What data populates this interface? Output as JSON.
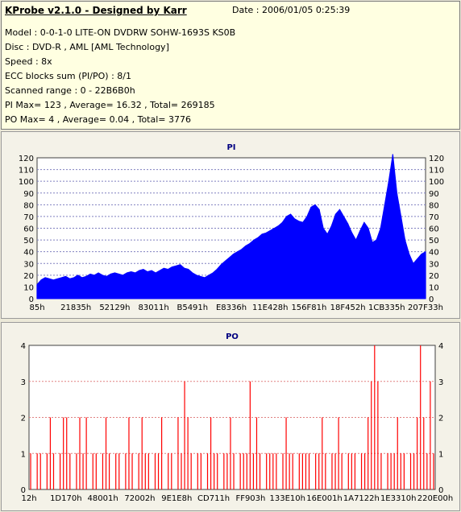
{
  "info": {
    "title": "KProbe v2.1.0 - Designed by Karr",
    "date": "Date : 2006/01/05 0:25:39",
    "lines": [
      "Model : 0-0-1-0 LITE-ON DVDRW SOHW-1693S KS0B",
      "Disc : DVD-R , AML [AML Technology]",
      "Speed : 8x",
      "ECC blocks sum (PI/PO) : 8/1",
      "Scanned range : 0 - 22B6B0h",
      "PI Max= 123 , Average= 16.32 , Total= 269185",
      "PO Max= 4 , Average= 0.04 , Total= 3776"
    ]
  },
  "colors": {
    "pi": "#0000ff",
    "po": "#ff0000",
    "plot_bg": "#ffffff",
    "grid_pi": "#8080c0",
    "grid_po": "#e08080"
  },
  "chart_data": [
    {
      "type": "area",
      "title": "PI",
      "xlabel": "",
      "ylabel": "",
      "ylim": [
        0,
        120
      ],
      "yticks": [
        0,
        10,
        20,
        30,
        40,
        50,
        60,
        70,
        80,
        90,
        100,
        110,
        120
      ],
      "xticks": [
        "85h",
        "21835h",
        "52129h",
        "83011h",
        "B5491h",
        "E8336h",
        "11E428h",
        "156F81h",
        "18F452h",
        "1CB335h",
        "207F33h"
      ],
      "grid": true,
      "series": [
        {
          "values": [
            12,
            16,
            18,
            17,
            16,
            17,
            18,
            19,
            17,
            18,
            20,
            18,
            19,
            21,
            20,
            22,
            20,
            19,
            21,
            22,
            21,
            20,
            22,
            23,
            22,
            24,
            25,
            23,
            24,
            22,
            24,
            26,
            25,
            27,
            28,
            29,
            26,
            25,
            22,
            20,
            19,
            18,
            20,
            22,
            25,
            29,
            32,
            35,
            38,
            40,
            42,
            45,
            47,
            50,
            52,
            55,
            56,
            58,
            60,
            62,
            65,
            70,
            72,
            68,
            66,
            65,
            70,
            78,
            80,
            76,
            60,
            55,
            62,
            72,
            76,
            70,
            64,
            56,
            50,
            58,
            65,
            60,
            48,
            50,
            60,
            80,
            100,
            123,
            90,
            70,
            50,
            38,
            30,
            34,
            38,
            40
          ]
        }
      ]
    },
    {
      "type": "bar",
      "title": "PO",
      "xlabel": "",
      "ylabel": "",
      "ylim": [
        0,
        4
      ],
      "yticks": [
        0,
        1,
        2,
        3,
        4
      ],
      "xticks": [
        "12h",
        "1D170h",
        "48001h",
        "72002h",
        "9E1E8h",
        "CD711h",
        "FF903h",
        "133E10h",
        "16E001h",
        "1A7122h",
        "1E3310h",
        "220E00h"
      ],
      "grid": true,
      "series": [
        {
          "values": [
            1,
            0,
            1,
            1,
            0,
            1,
            2,
            1,
            0,
            1,
            2,
            2,
            1,
            0,
            1,
            2,
            1,
            2,
            0,
            1,
            1,
            0,
            1,
            2,
            1,
            0,
            1,
            1,
            0,
            1,
            2,
            1,
            0,
            1,
            2,
            1,
            1,
            0,
            1,
            1,
            2,
            0,
            1,
            1,
            0,
            2,
            1,
            3,
            2,
            1,
            0,
            1,
            1,
            0,
            1,
            2,
            1,
            1,
            0,
            1,
            1,
            2,
            1,
            0,
            1,
            1,
            1,
            3,
            1,
            2,
            1,
            0,
            1,
            1,
            1,
            1,
            0,
            1,
            2,
            1,
            1,
            0,
            1,
            1,
            1,
            1,
            0,
            1,
            1,
            2,
            1,
            0,
            1,
            1,
            2,
            1,
            0,
            1,
            1,
            1,
            0,
            1,
            1,
            2,
            3,
            4,
            3,
            1,
            0,
            1,
            1,
            1,
            2,
            1,
            1,
            0,
            1,
            1,
            2,
            4,
            2,
            1,
            3,
            1
          ]
        }
      ]
    }
  ]
}
